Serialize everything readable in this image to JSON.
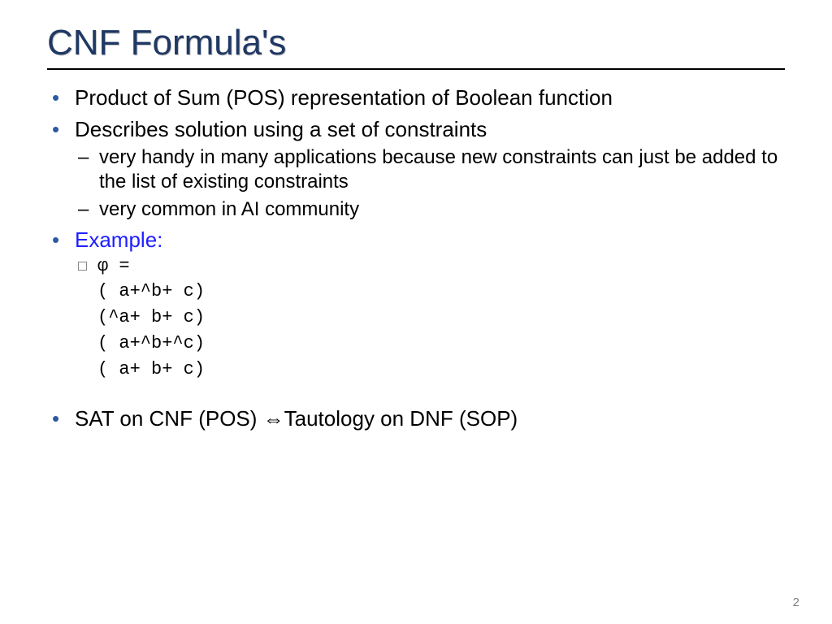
{
  "title": "CNF Formula's",
  "title_color": "#203864",
  "bullet_color": "#2c5aa0",
  "text_color": "#000000",
  "example_color": "#2020ff",
  "rule_color": "#000000",
  "background_color": "#ffffff",
  "pagenum_color": "#808080",
  "fonts": {
    "title_size": 44,
    "lvl1_size": 26,
    "lvl2_size": 24,
    "lvl3_size": 22
  },
  "bullets": {
    "b1": "Product of Sum (POS) representation of Boolean function",
    "b2": "Describes solution using a set of constraints",
    "b2_sub1": "very handy in many applications because new constraints can just be added to the list of existing constraints",
    "b2_sub2": "very common in AI community",
    "b3": "Example:",
    "b4_pre": "SAT on CNF (POS) ",
    "b4_post": "Tautology on DNF (SOP)",
    "b4_arrow": "⇔"
  },
  "formula": {
    "phi": "φ =",
    "line1": "( a+^b+ c)",
    "line2": "(^a+ b+ c)",
    "line3": "( a+^b+^c)",
    "line4": "( a+ b+ c)"
  },
  "page_number": "2"
}
